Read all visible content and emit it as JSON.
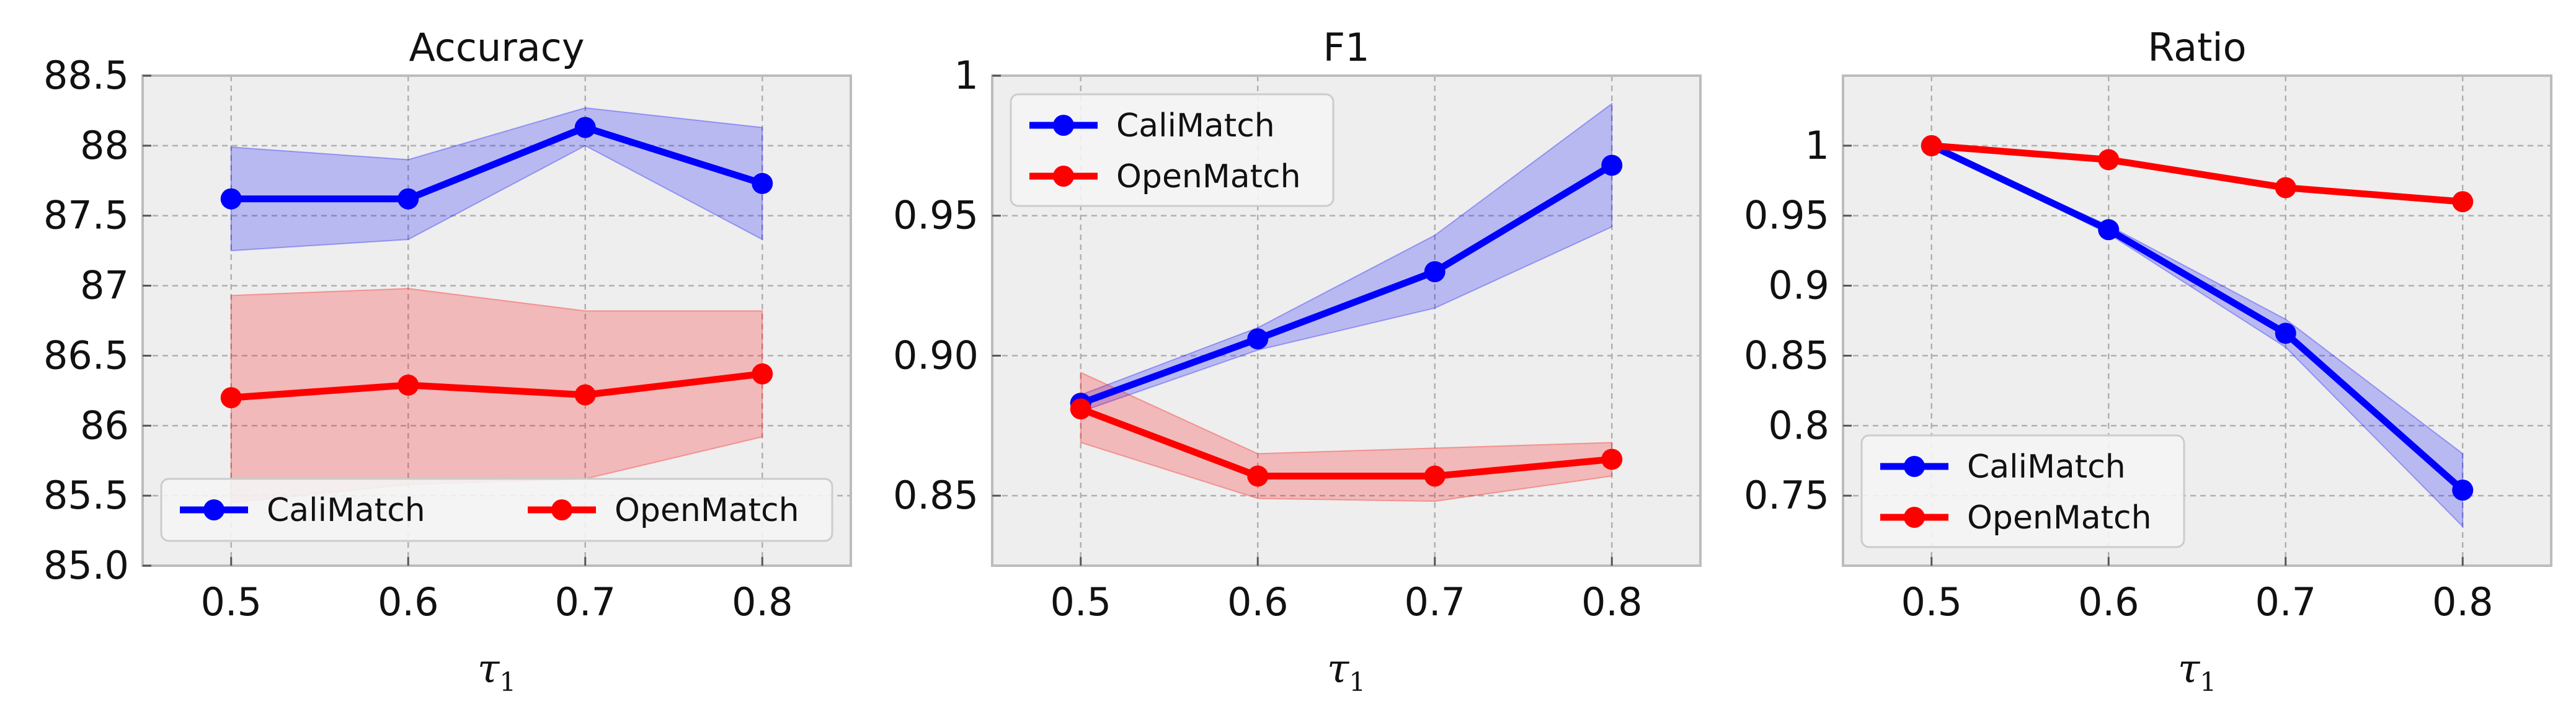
{
  "figure": {
    "background": "#ffffff",
    "plot_background": "#eeeeee",
    "grid_color": "#b0b0b0",
    "axis_color": "#bcbcbc"
  },
  "chart_data": [
    {
      "type": "line",
      "title": "Accuracy",
      "xlabel": "τ1",
      "x": [
        0.5,
        0.6,
        0.7,
        0.8
      ],
      "xticks": [
        "0.5",
        "0.6",
        "0.7",
        "0.8"
      ],
      "xlim": [
        0.45,
        0.85
      ],
      "ylim": [
        85.0,
        88.5
      ],
      "yticks": [
        85.0,
        85.5,
        86,
        86.5,
        87,
        87.5,
        88,
        88.5
      ],
      "ytick_labels": [
        "85.0",
        "85.5",
        "86",
        "86.5",
        "87",
        "87.5",
        "88",
        "88.5"
      ],
      "grid": true,
      "legend": {
        "position": "bottom",
        "columns": 2
      },
      "series": [
        {
          "name": "CaliMatch",
          "color": "#0000ff",
          "values": [
            87.62,
            87.62,
            88.13,
            87.73
          ],
          "lower": [
            87.25,
            87.33,
            88.0,
            87.33
          ],
          "upper": [
            87.99,
            87.9,
            88.27,
            88.13
          ]
        },
        {
          "name": "OpenMatch",
          "color": "#ff0000",
          "values": [
            86.2,
            86.29,
            86.22,
            86.37
          ],
          "lower": [
            85.45,
            85.58,
            85.62,
            85.92
          ],
          "upper": [
            86.93,
            86.98,
            86.82,
            86.82
          ]
        }
      ]
    },
    {
      "type": "line",
      "title": "F1",
      "xlabel": "τ1",
      "x": [
        0.5,
        0.6,
        0.7,
        0.8
      ],
      "xticks": [
        "0.5",
        "0.6",
        "0.7",
        "0.8"
      ],
      "xlim": [
        0.45,
        0.85
      ],
      "ylim": [
        0.825,
        1.0
      ],
      "yticks": [
        0.85,
        0.9,
        0.95,
        1.0
      ],
      "ytick_labels": [
        "0.85",
        "0.90",
        "0.95",
        "1"
      ],
      "grid": true,
      "legend": {
        "position": "top-left",
        "columns": 1
      },
      "series": [
        {
          "name": "CaliMatch",
          "color": "#0000ff",
          "values": [
            0.883,
            0.906,
            0.93,
            0.968
          ],
          "lower": [
            0.88,
            0.902,
            0.917,
            0.946
          ],
          "upper": [
            0.886,
            0.91,
            0.943,
            0.99
          ]
        },
        {
          "name": "OpenMatch",
          "color": "#ff0000",
          "values": [
            0.881,
            0.857,
            0.857,
            0.863
          ],
          "lower": [
            0.869,
            0.849,
            0.848,
            0.857
          ],
          "upper": [
            0.894,
            0.865,
            0.867,
            0.869
          ]
        }
      ]
    },
    {
      "type": "line",
      "title": "Ratio",
      "xlabel": "τ1",
      "x": [
        0.5,
        0.6,
        0.7,
        0.8
      ],
      "xticks": [
        "0.5",
        "0.6",
        "0.7",
        "0.8"
      ],
      "xlim": [
        0.45,
        0.85
      ],
      "ylim": [
        0.7,
        1.05
      ],
      "yticks": [
        0.75,
        0.8,
        0.85,
        0.9,
        0.95,
        1.0
      ],
      "ytick_labels": [
        "0.75",
        "0.8",
        "0.85",
        "0.9",
        "0.95",
        "1"
      ],
      "grid": true,
      "legend": {
        "position": "bottom-left",
        "columns": 1
      },
      "series": [
        {
          "name": "CaliMatch",
          "color": "#0000ff",
          "values": [
            1.0,
            0.94,
            0.866,
            0.754
          ],
          "lower": [
            1.0,
            0.937,
            0.856,
            0.728
          ],
          "upper": [
            1.0,
            0.943,
            0.876,
            0.78
          ]
        },
        {
          "name": "OpenMatch",
          "color": "#ff0000",
          "values": [
            1.0,
            0.99,
            0.97,
            0.96
          ],
          "lower": [
            1.0,
            0.99,
            0.97,
            0.96
          ],
          "upper": [
            1.0,
            0.99,
            0.97,
            0.96
          ]
        }
      ]
    }
  ]
}
